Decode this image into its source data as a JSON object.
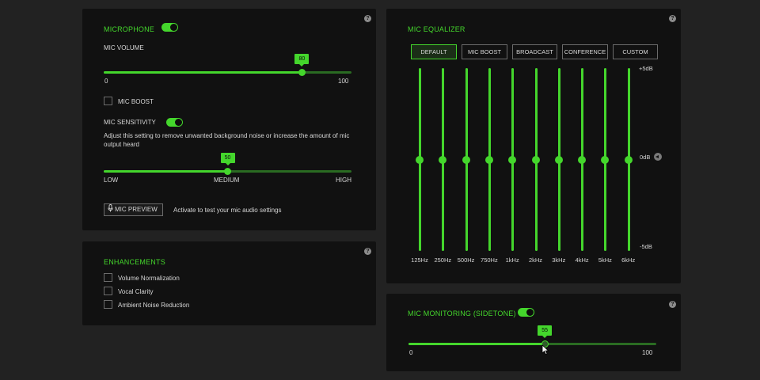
{
  "microphone": {
    "title": "MICROPHONE",
    "toggle_on": true,
    "mic_volume_label": "MIC VOLUME",
    "volume_value": 80,
    "volume_min": "0",
    "volume_max": "100",
    "mic_boost_label": "MIC BOOST",
    "mic_boost_checked": false,
    "sensitivity_label": "MIC SENSITIVITY",
    "sensitivity_toggle_on": true,
    "sensitivity_desc": "Adjust this setting to remove unwanted background noise or increase the amount of mic output heard",
    "sensitivity_value": 50,
    "sens_low": "LOW",
    "sens_medium": "MEDIUM",
    "sens_high": "HIGH",
    "preview_button": "MIC PREVIEW",
    "preview_hint": "Activate to test your mic audio settings",
    "help": "?"
  },
  "enhancements": {
    "title": "ENHANCEMENTS",
    "items": [
      {
        "label": "Volume Normalization",
        "checked": false
      },
      {
        "label": "Vocal Clarity",
        "checked": false
      },
      {
        "label": "Ambient Noise Reduction",
        "checked": false
      }
    ],
    "help": "?"
  },
  "equalizer": {
    "title": "MIC EQUALIZER",
    "presets": [
      "DEFAULT",
      "MIC BOOST",
      "BROADCAST",
      "CONFERENCE",
      "CUSTOM"
    ],
    "active_preset": "DEFAULT",
    "bands": [
      {
        "freq": "125Hz",
        "gain_db": 0
      },
      {
        "freq": "250Hz",
        "gain_db": 0
      },
      {
        "freq": "500Hz",
        "gain_db": 0
      },
      {
        "freq": "750Hz",
        "gain_db": 0
      },
      {
        "freq": "1kHz",
        "gain_db": 0
      },
      {
        "freq": "2kHz",
        "gain_db": 0
      },
      {
        "freq": "3kHz",
        "gain_db": 0
      },
      {
        "freq": "4kHz",
        "gain_db": 0
      },
      {
        "freq": "5kHz",
        "gain_db": 0
      },
      {
        "freq": "6kHz",
        "gain_db": 0
      }
    ],
    "db_max": "+5dB",
    "db_mid": "0dB",
    "db_min": "-5dB",
    "help": "?"
  },
  "monitoring": {
    "title": "MIC MONITORING (SIDETONE)",
    "toggle_on": true,
    "value": 55,
    "min": "0",
    "max": "100",
    "help": "?"
  },
  "colors": {
    "accent": "#44d62c",
    "panel": "#111111",
    "background": "#222222"
  }
}
